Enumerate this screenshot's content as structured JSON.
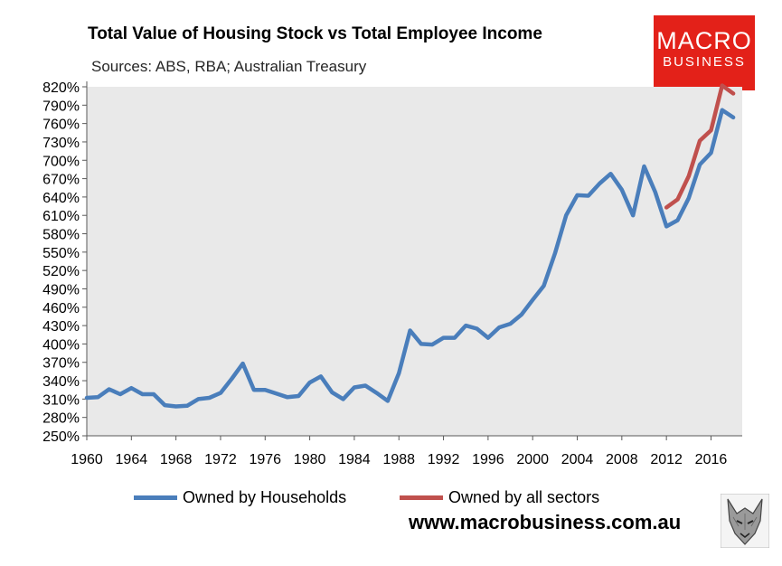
{
  "chart_data": {
    "type": "line",
    "title": "Total Value of Housing Stock vs Total Employee Income",
    "subtitle": "Sources: ABS, RBA; Australian Treasury",
    "xlabel": "",
    "ylabel": "",
    "xlim": [
      1960,
      2018
    ],
    "ylim": [
      250,
      820
    ],
    "y_ticks": [
      250,
      280,
      310,
      340,
      370,
      400,
      430,
      460,
      490,
      520,
      550,
      580,
      610,
      640,
      670,
      700,
      730,
      760,
      790,
      820
    ],
    "y_tick_suffix": "%",
    "x_ticks": [
      1960,
      1964,
      1968,
      1972,
      1976,
      1980,
      1984,
      1988,
      1992,
      1996,
      2000,
      2004,
      2008,
      2012,
      2016
    ],
    "grid": false,
    "plot_background": "#e9e9e9",
    "legend_position": "bottom",
    "series": [
      {
        "name": "Owned by Households",
        "color": "#4a7ebb",
        "x": [
          1960,
          1961,
          1962,
          1963,
          1964,
          1965,
          1966,
          1967,
          1968,
          1969,
          1970,
          1971,
          1972,
          1973,
          1974,
          1975,
          1976,
          1977,
          1978,
          1979,
          1980,
          1981,
          1982,
          1983,
          1984,
          1985,
          1986,
          1987,
          1988,
          1989,
          1990,
          1991,
          1992,
          1993,
          1994,
          1995,
          1996,
          1997,
          1998,
          1999,
          2000,
          2001,
          2002,
          2003,
          2004,
          2005,
          2006,
          2007,
          2008,
          2009,
          2010,
          2011,
          2012,
          2013,
          2014,
          2015,
          2016,
          2017,
          2018
        ],
        "values": [
          312,
          313,
          326,
          318,
          328,
          318,
          318,
          300,
          298,
          299,
          310,
          312,
          320,
          343,
          368,
          325,
          325,
          319,
          313,
          315,
          337,
          347,
          321,
          310,
          329,
          332,
          320,
          307,
          352,
          422,
          400,
          399,
          410,
          410,
          430,
          425,
          410,
          427,
          433,
          448,
          472,
          495,
          548,
          610,
          643,
          642,
          662,
          678,
          652,
          610,
          690,
          648,
          592,
          602,
          638,
          693,
          712,
          782,
          770
        ]
      },
      {
        "name": "Owned by all sectors",
        "color": "#c0504d",
        "x": [
          2012,
          2013,
          2014,
          2015,
          2016,
          2017,
          2018
        ],
        "values": [
          623,
          636,
          674,
          732,
          749,
          822,
          809
        ]
      }
    ]
  },
  "branding": {
    "logo_line1": "MACRO",
    "logo_line2": "BUSINESS",
    "logo_color": "#e32119",
    "website": "www.macrobusiness.com.au",
    "mascot_icon": "wolf-icon"
  }
}
